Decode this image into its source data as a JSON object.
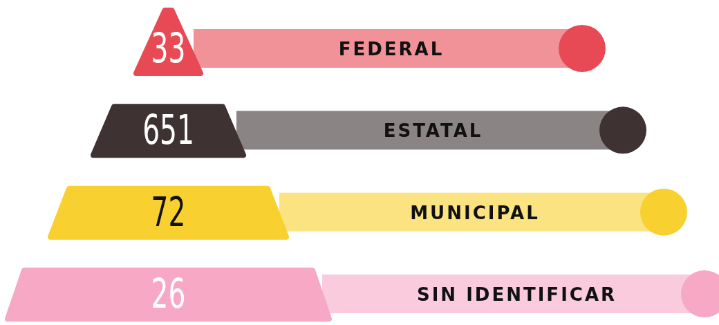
{
  "chart_data": {
    "type": "other",
    "categories": [
      "FEDERAL",
      "ESTATAL",
      "MUNICIPAL",
      "SIN IDENTIFICAR"
    ],
    "values": [
      33,
      651,
      72,
      26
    ],
    "colors": [
      "#e84a55",
      "#3e3232",
      "#f8d02f",
      "#f6a8c5"
    ],
    "data_labels": true
  }
}
